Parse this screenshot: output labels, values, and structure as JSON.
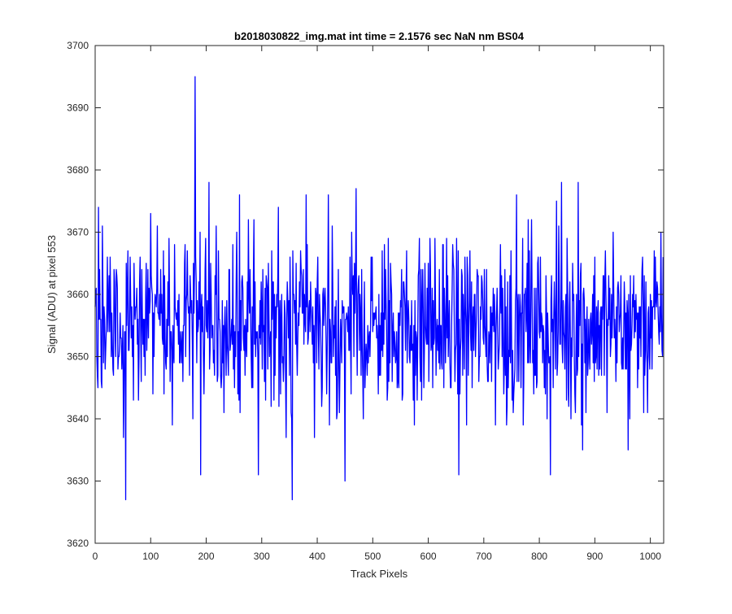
{
  "chart_data": {
    "type": "line",
    "title": "b2018030822_img.mat int time = 2.1576 sec  NaN nm BS04",
    "xlabel": "Track Pixels",
    "ylabel": "Signal (ADU) at pixel 553",
    "xlim": [
      0,
      1024
    ],
    "ylim": [
      3620,
      3700
    ],
    "xticks": [
      0,
      100,
      200,
      300,
      400,
      500,
      600,
      700,
      800,
      900,
      1000
    ],
    "yticks": [
      3620,
      3630,
      3640,
      3650,
      3660,
      3670,
      3680,
      3690,
      3700
    ],
    "xtick_labels": [
      "0",
      "100",
      "200",
      "300",
      "400",
      "500",
      "600",
      "700",
      "800",
      "900",
      "1000"
    ],
    "ytick_labels": [
      "3620",
      "3630",
      "3640",
      "3650",
      "3660",
      "3670",
      "3680",
      "3690",
      "3700"
    ],
    "grid": false,
    "legend": "none",
    "series_color": "#0000ff",
    "series": [
      {
        "n_points": 1024,
        "mean": 3655,
        "x": [
          0,
          6,
          12,
          25,
          42,
          55,
          70,
          90,
          100,
          128,
          150,
          165,
          179,
          180,
          190,
          205,
          230,
          260,
          270,
          294,
          300,
          330,
          355,
          380,
          395,
          420,
          450,
          470,
          500,
          520,
          560,
          580,
          600,
          630,
          655,
          670,
          700,
          730,
          780,
          820,
          840,
          860,
          870,
          878,
          920,
          960,
          1023
        ],
        "y": [
          3658,
          3674,
          3645,
          3663,
          3650,
          3627,
          3665,
          3647,
          3673,
          3648,
          3652,
          3660,
          3664,
          3695,
          3631,
          3678,
          3649,
          3676,
          3647,
          3631,
          3657,
          3674,
          3627,
          3676,
          3637,
          3676,
          3630,
          3677,
          3654,
          3652,
          3660,
          3643,
          3665,
          3657,
          3631,
          3666,
          3652,
          3668,
          3672,
          3631,
          3678,
          3665,
          3678,
          3635,
          3660,
          3635,
          3666
        ]
      }
    ]
  }
}
